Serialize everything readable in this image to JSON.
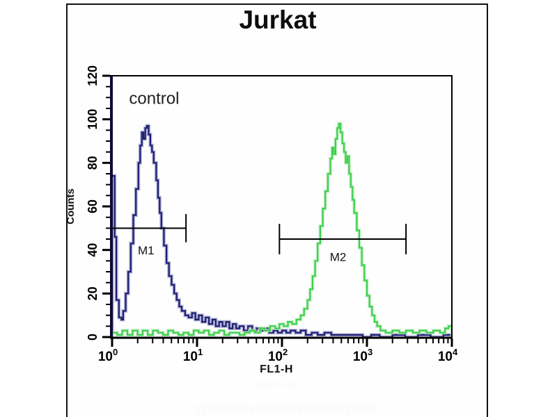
{
  "title": "Jurkat",
  "watermarks": {
    "small": "░░░░░░░",
    "large": "░░░░░░░░░░░░░░░░░░░░░░░░░░░"
  },
  "chart_data": {
    "type": "line",
    "subtype": "flow-cytometry-histogram-overlay",
    "title": "Jurkat",
    "xlabel": "FL1-H",
    "ylabel": "Counts",
    "x_scale": "log10",
    "xlim_log": [
      0,
      4
    ],
    "ylim": [
      0,
      120
    ],
    "grid": false,
    "legend": "none",
    "x_ticks": [
      {
        "base": "10",
        "exp": "0"
      },
      {
        "base": "10",
        "exp": "1"
      },
      {
        "base": "10",
        "exp": "2"
      },
      {
        "base": "10",
        "exp": "3"
      },
      {
        "base": "10",
        "exp": "4"
      }
    ],
    "x_minor_multiples": [
      2,
      3,
      4,
      5,
      6,
      7,
      8,
      9
    ],
    "y_ticks": [
      "0",
      "20",
      "40",
      "60",
      "80",
      "100",
      "120"
    ],
    "y_minor_step": 5,
    "annotations": [
      {
        "text": "control",
        "x_log": 0.2,
        "y_count": 107,
        "font_size": 24,
        "color": "#222222"
      }
    ],
    "markers": [
      {
        "label": "M1",
        "y_count": 50,
        "x1_log": 0.0,
        "x2_log": 0.87,
        "cap_half_count": 6.5,
        "label_x_log": 0.4,
        "label_y_count": 38
      },
      {
        "label": "M2",
        "y_count": 45,
        "x1_log": 1.97,
        "x2_log": 3.46,
        "cap_half_count": 7.0,
        "label_x_log": 2.66,
        "label_y_count": 35
      }
    ],
    "series": [
      {
        "name": "control",
        "color": "#1c1c72",
        "halo": "#9a9ac8",
        "peak": {
          "x_log": 0.41,
          "count": 97
        },
        "points": [
          [
            0,
            74
          ],
          [
            0.03,
            46
          ],
          [
            0.05,
            17
          ],
          [
            0.08,
            9
          ],
          [
            0.11,
            8
          ],
          [
            0.13,
            12
          ],
          [
            0.16,
            20
          ],
          [
            0.19,
            30
          ],
          [
            0.22,
            43
          ],
          [
            0.25,
            56
          ],
          [
            0.28,
            68
          ],
          [
            0.31,
            80
          ],
          [
            0.33,
            88
          ],
          [
            0.35,
            94
          ],
          [
            0.37,
            91
          ],
          [
            0.39,
            96
          ],
          [
            0.41,
            97
          ],
          [
            0.43,
            93
          ],
          [
            0.45,
            88
          ],
          [
            0.47,
            85
          ],
          [
            0.49,
            80
          ],
          [
            0.52,
            72
          ],
          [
            0.54,
            64
          ],
          [
            0.56,
            57
          ],
          [
            0.58,
            50
          ],
          [
            0.61,
            42
          ],
          [
            0.64,
            34
          ],
          [
            0.67,
            28
          ],
          [
            0.7,
            24
          ],
          [
            0.73,
            20
          ],
          [
            0.76,
            17
          ],
          [
            0.79,
            14
          ],
          [
            0.82,
            12
          ],
          [
            0.86,
            10
          ],
          [
            0.9,
            9
          ],
          [
            0.94,
            11
          ],
          [
            0.98,
            8
          ],
          [
            1.02,
            10
          ],
          [
            1.06,
            7
          ],
          [
            1.1,
            9
          ],
          [
            1.14,
            6
          ],
          [
            1.18,
            8
          ],
          [
            1.22,
            5
          ],
          [
            1.26,
            7
          ],
          [
            1.3,
            5
          ],
          [
            1.34,
            7
          ],
          [
            1.38,
            4
          ],
          [
            1.42,
            6
          ],
          [
            1.46,
            4
          ],
          [
            1.5,
            5
          ],
          [
            1.55,
            3
          ],
          [
            1.6,
            5
          ],
          [
            1.65,
            3
          ],
          [
            1.7,
            4
          ],
          [
            1.75,
            3
          ],
          [
            1.8,
            4
          ],
          [
            1.85,
            2
          ],
          [
            1.9,
            3
          ],
          [
            1.95,
            2
          ],
          [
            2.0,
            3
          ],
          [
            2.05,
            2
          ],
          [
            2.1,
            3
          ],
          [
            2.16,
            2
          ],
          [
            2.22,
            3
          ],
          [
            2.28,
            1
          ],
          [
            2.35,
            2
          ],
          [
            2.42,
            1
          ],
          [
            2.5,
            2
          ],
          [
            2.58,
            1
          ],
          [
            2.66,
            1
          ],
          [
            2.75,
            1
          ],
          [
            2.85,
            1
          ],
          [
            2.95,
            0
          ],
          [
            3.05,
            1
          ],
          [
            3.15,
            0
          ],
          [
            3.3,
            1
          ],
          [
            3.45,
            0
          ],
          [
            3.6,
            1
          ],
          [
            3.75,
            0
          ],
          [
            3.9,
            1
          ],
          [
            4.0,
            0
          ]
        ]
      },
      {
        "name": "green",
        "color": "#3ecf4e",
        "halo": "#b9ecbc",
        "peak": {
          "x_log": 2.67,
          "count": 98
        },
        "points": [
          [
            0,
            2
          ],
          [
            0.06,
            1
          ],
          [
            0.12,
            3
          ],
          [
            0.18,
            1
          ],
          [
            0.24,
            3
          ],
          [
            0.3,
            1
          ],
          [
            0.36,
            3
          ],
          [
            0.42,
            1
          ],
          [
            0.48,
            3
          ],
          [
            0.54,
            2
          ],
          [
            0.6,
            1
          ],
          [
            0.66,
            3
          ],
          [
            0.72,
            2
          ],
          [
            0.78,
            1
          ],
          [
            0.84,
            2
          ],
          [
            0.9,
            1
          ],
          [
            0.96,
            3
          ],
          [
            1.02,
            2
          ],
          [
            1.08,
            3
          ],
          [
            1.14,
            1
          ],
          [
            1.2,
            2
          ],
          [
            1.26,
            3
          ],
          [
            1.32,
            1
          ],
          [
            1.38,
            2
          ],
          [
            1.44,
            2
          ],
          [
            1.5,
            1
          ],
          [
            1.56,
            2
          ],
          [
            1.62,
            3
          ],
          [
            1.68,
            2
          ],
          [
            1.74,
            4
          ],
          [
            1.8,
            3
          ],
          [
            1.86,
            5
          ],
          [
            1.92,
            4
          ],
          [
            1.97,
            6
          ],
          [
            2.02,
            5
          ],
          [
            2.07,
            7
          ],
          [
            2.12,
            6
          ],
          [
            2.17,
            8
          ],
          [
            2.22,
            10
          ],
          [
            2.26,
            13
          ],
          [
            2.3,
            17
          ],
          [
            2.33,
            22
          ],
          [
            2.36,
            28
          ],
          [
            2.39,
            35
          ],
          [
            2.42,
            43
          ],
          [
            2.45,
            51
          ],
          [
            2.48,
            59
          ],
          [
            2.51,
            67
          ],
          [
            2.54,
            75
          ],
          [
            2.57,
            82
          ],
          [
            2.59,
            87
          ],
          [
            2.61,
            84
          ],
          [
            2.63,
            91
          ],
          [
            2.65,
            96
          ],
          [
            2.67,
            98
          ],
          [
            2.69,
            94
          ],
          [
            2.71,
            89
          ],
          [
            2.73,
            85
          ],
          [
            2.75,
            80
          ],
          [
            2.77,
            83
          ],
          [
            2.79,
            75
          ],
          [
            2.81,
            69
          ],
          [
            2.83,
            63
          ],
          [
            2.85,
            57
          ],
          [
            2.88,
            49
          ],
          [
            2.91,
            41
          ],
          [
            2.94,
            33
          ],
          [
            2.97,
            26
          ],
          [
            3.0,
            19
          ],
          [
            3.03,
            14
          ],
          [
            3.06,
            10
          ],
          [
            3.09,
            7
          ],
          [
            3.12,
            5
          ],
          [
            3.16,
            3
          ],
          [
            3.22,
            2
          ],
          [
            3.3,
            3
          ],
          [
            3.38,
            2
          ],
          [
            3.46,
            3
          ],
          [
            3.54,
            2
          ],
          [
            3.62,
            3
          ],
          [
            3.7,
            2
          ],
          [
            3.78,
            3
          ],
          [
            3.86,
            2
          ],
          [
            3.92,
            4
          ],
          [
            3.96,
            5
          ],
          [
            4.0,
            3
          ]
        ]
      }
    ]
  }
}
